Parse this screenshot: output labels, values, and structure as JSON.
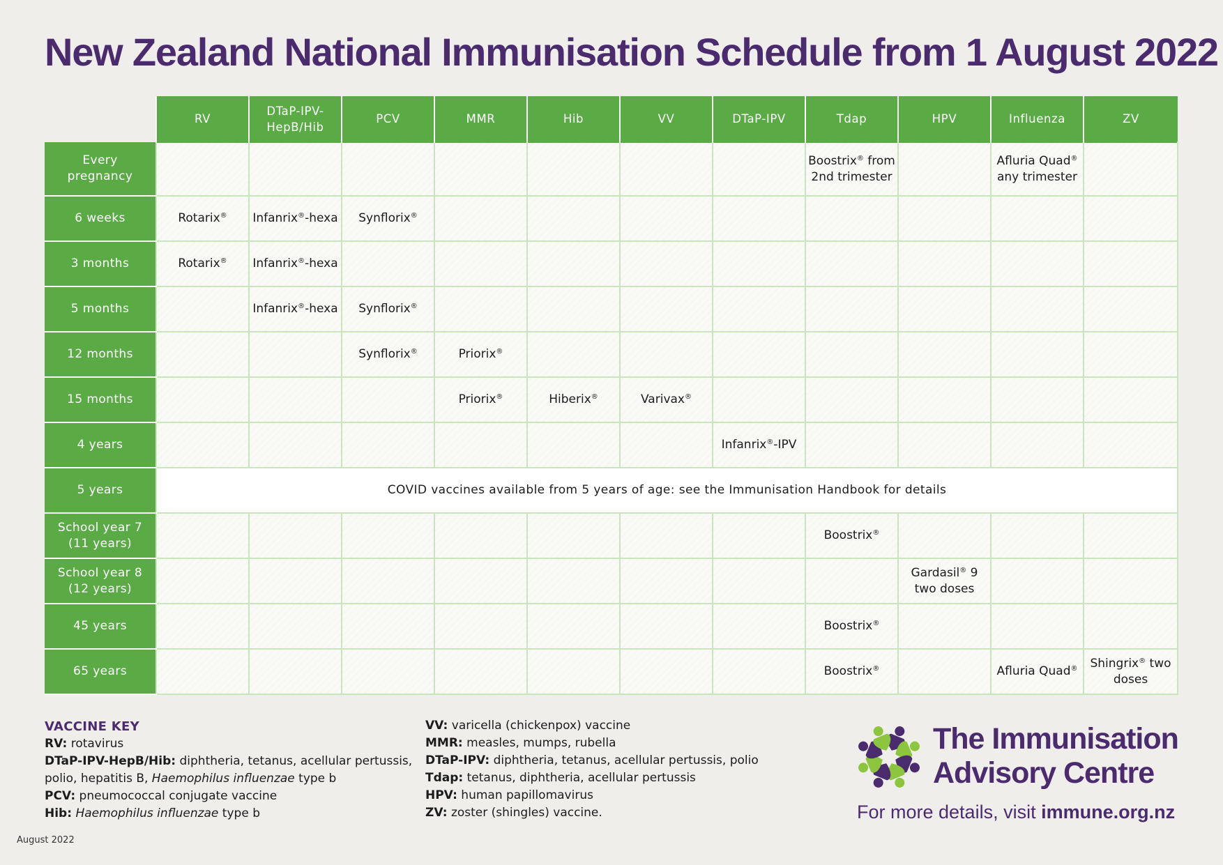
{
  "title": "New Zealand National Immunisation Schedule from 1 August 2022",
  "table": {
    "columns": [
      "RV",
      "DTaP-IPV-HepB/Hib",
      "PCV",
      "MMR",
      "Hib",
      "VV",
      "DTaP-IPV",
      "Tdap",
      "HPV",
      "Influenza",
      "ZV"
    ],
    "rows": [
      {
        "label": "Every pregnancy",
        "cells": [
          "",
          "",
          "",
          "",
          "",
          "",
          "",
          "Boostrix® from 2nd trimester",
          "",
          "Afluria Quad® any trimester",
          ""
        ]
      },
      {
        "label": "6 weeks",
        "cells": [
          "Rotarix®",
          "Infanrix®-hexa",
          "Synflorix®",
          "",
          "",
          "",
          "",
          "",
          "",
          "",
          ""
        ]
      },
      {
        "label": "3 months",
        "cells": [
          "Rotarix®",
          "Infanrix®-hexa",
          "",
          "",
          "",
          "",
          "",
          "",
          "",
          "",
          ""
        ]
      },
      {
        "label": "5 months",
        "cells": [
          "",
          "Infanrix®-hexa",
          "Synflorix®",
          "",
          "",
          "",
          "",
          "",
          "",
          "",
          ""
        ]
      },
      {
        "label": "12 months",
        "cells": [
          "",
          "",
          "Synflorix®",
          "Priorix®",
          "",
          "",
          "",
          "",
          "",
          "",
          ""
        ]
      },
      {
        "label": "15 months",
        "cells": [
          "",
          "",
          "",
          "Priorix®",
          "Hiberix®",
          "Varivax®",
          "",
          "",
          "",
          "",
          ""
        ]
      },
      {
        "label": "4 years",
        "cells": [
          "",
          "",
          "",
          "",
          "",
          "",
          "Infanrix®-IPV",
          "",
          "",
          "",
          ""
        ]
      },
      {
        "label": "5 years",
        "span_text": "COVID vaccines available from 5 years of age: see the Immunisation Handbook for details"
      },
      {
        "label": "School year 7 (11 years)",
        "cells": [
          "",
          "",
          "",
          "",
          "",
          "",
          "",
          "Boostrix®",
          "",
          "",
          ""
        ]
      },
      {
        "label": "School year 8 (12 years)",
        "cells": [
          "",
          "",
          "",
          "",
          "",
          "",
          "",
          "",
          "Gardasil® 9 two doses",
          "",
          ""
        ]
      },
      {
        "label": "45 years",
        "cells": [
          "",
          "",
          "",
          "",
          "",
          "",
          "",
          "Boostrix®",
          "",
          "",
          ""
        ]
      },
      {
        "label": "65 years",
        "cells": [
          "",
          "",
          "",
          "",
          "",
          "",
          "",
          "Boostrix®",
          "",
          "Afluria Quad®",
          "Shingrix® two doses"
        ]
      }
    ]
  },
  "vaccine_key": {
    "heading": "VACCINE KEY",
    "left": [
      {
        "abbr": "RV:",
        "desc": "rotavirus"
      },
      {
        "abbr": "DTaP-IPV-HepB/Hib:",
        "desc": "diphtheria, tetanus, acellular pertussis, polio, hepatitis B, Haemophilus influenzae type b"
      },
      {
        "abbr": "PCV:",
        "desc": "pneumococcal conjugate vaccine"
      },
      {
        "abbr": "Hib:",
        "desc": "Haemophilus influenzae type b"
      }
    ],
    "right": [
      {
        "abbr": "VV:",
        "desc": "varicella (chickenpox) vaccine"
      },
      {
        "abbr": "MMR:",
        "desc": "measles, mumps, rubella"
      },
      {
        "abbr": "DTaP-IPV:",
        "desc": "diphtheria, tetanus, acellular pertussis, polio"
      },
      {
        "abbr": "Tdap:",
        "desc": "tetanus, diphtheria, acellular pertussis"
      },
      {
        "abbr": "HPV:",
        "desc": "human papillomavirus"
      },
      {
        "abbr": "ZV:",
        "desc": "zoster (shingles) vaccine."
      }
    ]
  },
  "org": {
    "line1": "The Immunisation",
    "line2": "Advisory Centre",
    "visit_prefix": "For more details, visit",
    "url": "immune.org.nz"
  },
  "footer": {
    "date": "August 2022"
  },
  "colors": {
    "green": "#5aab46",
    "purple": "#4a2c6e",
    "light_green": "#8cc63f"
  }
}
